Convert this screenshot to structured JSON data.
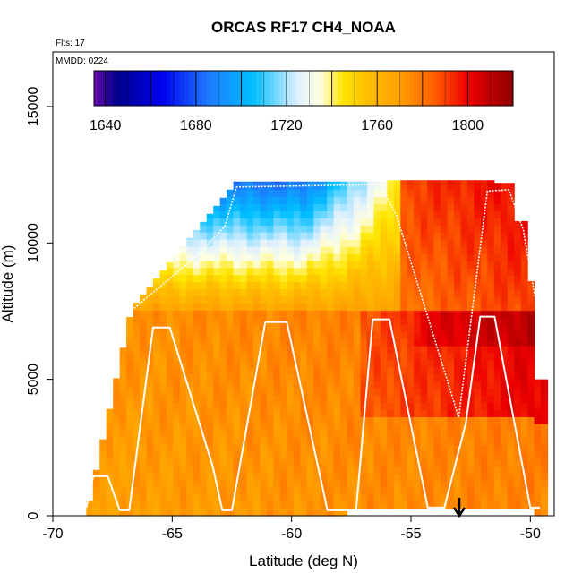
{
  "chart_data": {
    "type": "heatmap",
    "title": "ORCAS RF17 CH4_NOAA",
    "annotations": {
      "flights": "Flts: 17",
      "date": "MMDD: 0224"
    },
    "xlabel": "Latitude (deg N)",
    "ylabel": "Altitude (m)",
    "xlim": [
      -70,
      -49
    ],
    "ylim": [
      0,
      17000
    ],
    "x_ticks": [
      -70,
      -65,
      -60,
      -55,
      -50
    ],
    "y_ticks": [
      0,
      5000,
      10000,
      15000
    ],
    "colorbar": {
      "range": [
        1635,
        1820
      ],
      "ticks": [
        1640,
        1680,
        1720,
        1760,
        1800
      ],
      "stops": [
        {
          "v": 1635,
          "c": "#6a0dad"
        },
        {
          "v": 1645,
          "c": "#00008b"
        },
        {
          "v": 1665,
          "c": "#0000ee"
        },
        {
          "v": 1685,
          "c": "#1e78ff"
        },
        {
          "v": 1705,
          "c": "#00bfff"
        },
        {
          "v": 1725,
          "c": "#e0f0ff"
        },
        {
          "v": 1735,
          "c": "#ffffe0"
        },
        {
          "v": 1745,
          "c": "#ffe600"
        },
        {
          "v": 1755,
          "c": "#ffc000"
        },
        {
          "v": 1770,
          "c": "#ffa000"
        },
        {
          "v": 1785,
          "c": "#ff6000"
        },
        {
          "v": 1800,
          "c": "#ee0000"
        },
        {
          "v": 1820,
          "c": "#8b0000"
        }
      ]
    },
    "flight_track": {
      "color": "#ffffff",
      "points": [
        [
          -68.6,
          300
        ],
        [
          -68.3,
          1450
        ],
        [
          -67.7,
          1450
        ],
        [
          -67.2,
          200
        ],
        [
          -66.8,
          200
        ],
        [
          -65.8,
          6900
        ],
        [
          -65.1,
          6900
        ],
        [
          -63.3,
          1800
        ],
        [
          -62.9,
          200
        ],
        [
          -62.5,
          200
        ],
        [
          -61.1,
          7100
        ],
        [
          -60.2,
          7100
        ],
        [
          -58.5,
          200
        ],
        [
          -58.0,
          200
        ],
        [
          -57.3,
          200
        ],
        [
          -56.6,
          7200
        ],
        [
          -55.9,
          7200
        ],
        [
          -54.3,
          300
        ],
        [
          -53.6,
          300
        ],
        [
          -52.7,
          3400
        ],
        [
          -52.1,
          7300
        ],
        [
          -51.5,
          7300
        ],
        [
          -50.0,
          300
        ],
        [
          -49.6,
          300
        ]
      ],
      "upper_profile": [
        [
          -66.6,
          7600
        ],
        [
          -64.0,
          9500
        ],
        [
          -62.8,
          10600
        ],
        [
          -62.3,
          12050
        ],
        [
          -59.0,
          12100
        ],
        [
          -56.3,
          12150
        ],
        [
          -55.6,
          11000
        ],
        [
          -53.0,
          3600
        ],
        [
          -51.8,
          11900
        ],
        [
          -50.9,
          11950
        ],
        [
          -50.3,
          10500
        ],
        [
          -49.7,
          7500
        ]
      ]
    },
    "grid": false,
    "legend_position": "top"
  }
}
